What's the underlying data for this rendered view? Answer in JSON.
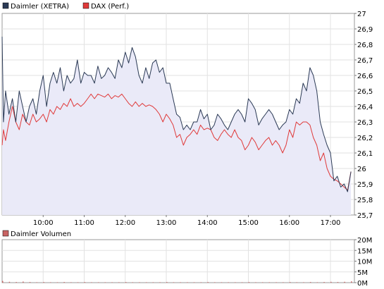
{
  "chart_data": [
    {
      "type": "line",
      "legend_placement": "top-left",
      "ylim": [
        25.7,
        27.0
      ],
      "yticks": [
        "27",
        "26,9",
        "26,8",
        "26,7",
        "26,6",
        "26,5",
        "26,4",
        "26,3",
        "26,2",
        "26,1",
        "26",
        "25,9",
        "25,8",
        "25,7"
      ],
      "xticks": [
        "10:00",
        "11:00",
        "12:00",
        "13:00",
        "14:00",
        "15:00",
        "16:00",
        "17:00"
      ],
      "grid": true,
      "series": [
        {
          "name": "Daimler (XETRA)",
          "color": "#2b3a55",
          "fill": "#eaeaf8",
          "x": [
            "09:00",
            "09:02",
            "09:05",
            "09:10",
            "09:15",
            "09:20",
            "09:25",
            "09:30",
            "09:35",
            "09:40",
            "09:45",
            "09:50",
            "09:55",
            "10:00",
            "10:05",
            "10:10",
            "10:15",
            "10:20",
            "10:25",
            "10:30",
            "10:35",
            "10:40",
            "10:45",
            "10:50",
            "10:55",
            "11:00",
            "11:05",
            "11:10",
            "11:15",
            "11:20",
            "11:25",
            "11:30",
            "11:35",
            "11:40",
            "11:45",
            "11:50",
            "11:55",
            "12:00",
            "12:05",
            "12:10",
            "12:15",
            "12:20",
            "12:25",
            "12:30",
            "12:35",
            "12:40",
            "12:45",
            "12:50",
            "12:55",
            "13:00",
            "13:05",
            "13:10",
            "13:15",
            "13:20",
            "13:25",
            "13:30",
            "13:35",
            "13:40",
            "13:45",
            "13:50",
            "13:55",
            "14:00",
            "14:05",
            "14:10",
            "14:15",
            "14:20",
            "14:25",
            "14:30",
            "14:35",
            "14:40",
            "14:45",
            "14:50",
            "14:55",
            "15:00",
            "15:05",
            "15:10",
            "15:15",
            "15:20",
            "15:25",
            "15:30",
            "15:35",
            "15:40",
            "15:45",
            "15:50",
            "15:55",
            "16:00",
            "16:05",
            "16:10",
            "16:15",
            "16:20",
            "16:25",
            "16:30",
            "16:35",
            "16:40",
            "16:45",
            "16:50",
            "16:55",
            "17:00",
            "17:05",
            "17:10",
            "17:15",
            "17:20",
            "17:25",
            "17:30"
          ],
          "y": [
            26.85,
            26.3,
            26.5,
            26.35,
            26.45,
            26.3,
            26.5,
            26.4,
            26.3,
            26.4,
            26.45,
            26.35,
            26.5,
            26.6,
            26.4,
            26.55,
            26.62,
            26.55,
            26.65,
            26.5,
            26.6,
            26.55,
            26.58,
            26.7,
            26.55,
            26.62,
            26.6,
            26.6,
            26.55,
            26.66,
            26.58,
            26.6,
            26.65,
            26.62,
            26.58,
            26.7,
            26.65,
            26.75,
            26.68,
            26.78,
            26.72,
            26.6,
            26.55,
            26.65,
            26.58,
            26.68,
            26.7,
            26.62,
            26.65,
            26.55,
            26.55,
            26.45,
            26.35,
            26.33,
            26.25,
            26.28,
            26.25,
            26.3,
            26.3,
            26.38,
            26.32,
            26.35,
            26.25,
            26.28,
            26.35,
            26.32,
            26.28,
            26.25,
            26.3,
            26.35,
            26.38,
            26.35,
            26.3,
            26.45,
            26.42,
            26.38,
            26.28,
            26.32,
            26.35,
            26.38,
            26.35,
            26.3,
            26.25,
            26.28,
            26.3,
            26.38,
            26.35,
            26.45,
            26.42,
            26.55,
            26.5,
            26.65,
            26.6,
            26.5,
            26.3,
            26.22,
            26.15,
            26.1,
            25.92,
            25.95,
            25.88,
            25.9,
            25.85,
            25.98
          ]
        },
        {
          "name": "DAX (Perf.)",
          "color": "#e03a3a",
          "x": [
            "09:00",
            "09:02",
            "09:05",
            "09:10",
            "09:15",
            "09:20",
            "09:25",
            "09:30",
            "09:35",
            "09:40",
            "09:45",
            "09:50",
            "09:55",
            "10:00",
            "10:05",
            "10:10",
            "10:15",
            "10:20",
            "10:25",
            "10:30",
            "10:35",
            "10:40",
            "10:45",
            "10:50",
            "10:55",
            "11:00",
            "11:05",
            "11:10",
            "11:15",
            "11:20",
            "11:25",
            "11:30",
            "11:35",
            "11:40",
            "11:45",
            "11:50",
            "11:55",
            "12:00",
            "12:05",
            "12:10",
            "12:15",
            "12:20",
            "12:25",
            "12:30",
            "12:35",
            "12:40",
            "12:45",
            "12:50",
            "12:55",
            "13:00",
            "13:05",
            "13:10",
            "13:15",
            "13:20",
            "13:25",
            "13:30",
            "13:35",
            "13:40",
            "13:45",
            "13:50",
            "13:55",
            "14:00",
            "14:05",
            "14:10",
            "14:15",
            "14:20",
            "14:25",
            "14:30",
            "14:35",
            "14:40",
            "14:45",
            "14:50",
            "14:55",
            "15:00",
            "15:05",
            "15:10",
            "15:15",
            "15:20",
            "15:25",
            "15:30",
            "15:35",
            "15:40",
            "15:45",
            "15:50",
            "15:55",
            "16:00",
            "16:05",
            "16:10",
            "16:15",
            "16:20",
            "16:25",
            "16:30",
            "16:35",
            "16:40",
            "16:45",
            "16:50",
            "16:55",
            "17:00",
            "17:05",
            "17:10",
            "17:15",
            "17:20",
            "17:25",
            "17:30"
          ],
          "y": [
            26.15,
            26.25,
            26.18,
            26.3,
            26.4,
            26.3,
            26.25,
            26.35,
            26.3,
            26.28,
            26.35,
            26.3,
            26.32,
            26.35,
            26.3,
            26.38,
            26.35,
            26.4,
            26.38,
            26.42,
            26.4,
            26.45,
            26.4,
            26.42,
            26.4,
            26.42,
            26.45,
            26.48,
            26.45,
            26.48,
            26.47,
            26.46,
            26.48,
            26.45,
            26.47,
            26.46,
            26.48,
            26.45,
            26.42,
            26.4,
            26.43,
            26.4,
            26.42,
            26.4,
            26.41,
            26.4,
            26.38,
            26.35,
            26.3,
            26.35,
            26.32,
            26.28,
            26.2,
            26.22,
            26.15,
            26.2,
            26.22,
            26.25,
            26.22,
            26.28,
            26.25,
            26.26,
            26.25,
            26.2,
            26.18,
            26.22,
            26.25,
            26.22,
            26.2,
            26.25,
            26.2,
            26.18,
            26.12,
            26.15,
            26.2,
            26.17,
            26.12,
            26.15,
            26.18,
            26.2,
            26.15,
            26.18,
            26.15,
            26.1,
            26.15,
            26.25,
            26.2,
            26.3,
            26.28,
            26.3,
            26.3,
            26.28,
            26.2,
            26.15,
            26.05,
            26.1,
            26.0,
            25.95,
            25.93,
            25.92,
            25.9,
            25.88,
            25.86,
            25.98
          ]
        }
      ]
    },
    {
      "type": "bar",
      "legend_placement": "top-left",
      "ylim": [
        0,
        20
      ],
      "yticks": [
        "20M",
        "15M",
        "10M",
        "5M",
        "0M"
      ],
      "xticks": [
        "10:00",
        "11:00",
        "12:00",
        "13:00",
        "14:00",
        "15:00",
        "16:00",
        "17:00"
      ],
      "grid": true,
      "series": [
        {
          "name": "Daimler Volumen",
          "color": "#c86464",
          "x": [
            "09:00",
            "09:10",
            "09:20",
            "09:30",
            "09:40",
            "09:50",
            "10:00",
            "10:10",
            "10:20",
            "10:30",
            "10:40",
            "10:50",
            "11:00",
            "11:10",
            "11:20",
            "11:30",
            "11:40",
            "11:50",
            "12:00",
            "12:10",
            "12:20",
            "12:30",
            "12:40",
            "12:50",
            "13:00",
            "13:10",
            "13:20",
            "13:30",
            "13:40",
            "13:50",
            "14:00",
            "14:10",
            "14:20",
            "14:30",
            "14:40",
            "14:50",
            "15:00",
            "15:10",
            "15:20",
            "15:30",
            "15:40",
            "15:50",
            "16:00",
            "16:10",
            "16:20",
            "16:30",
            "16:40",
            "16:50",
            "17:00",
            "17:10",
            "17:20",
            "17:30"
          ],
          "values": [
            0.8,
            0.4,
            0.3,
            0.5,
            0.3,
            0.2,
            0.3,
            0.2,
            0.2,
            0.3,
            0.2,
            0.2,
            0.3,
            0.2,
            0.2,
            0.2,
            0.2,
            0.2,
            0.3,
            0.2,
            0.2,
            0.2,
            0.2,
            0.2,
            0.3,
            0.2,
            0.2,
            0.2,
            0.2,
            0.2,
            0.3,
            0.2,
            0.2,
            0.2,
            0.2,
            0.2,
            0.3,
            0.2,
            0.2,
            0.2,
            0.2,
            0.2,
            0.3,
            0.2,
            0.2,
            0.3,
            0.2,
            0.3,
            0.4,
            0.3,
            0.4,
            0.6
          ]
        }
      ]
    }
  ]
}
